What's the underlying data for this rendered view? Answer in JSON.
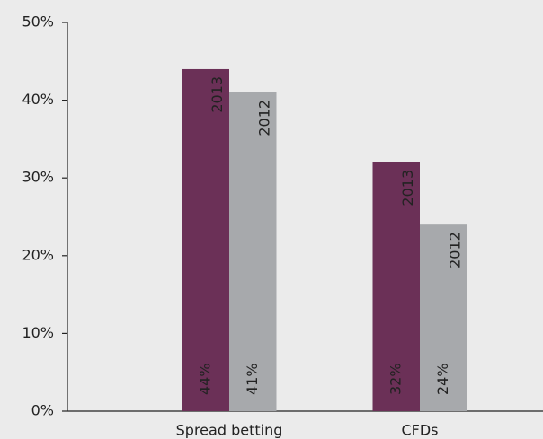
{
  "chart_data": {
    "type": "bar",
    "categories": [
      "Spread betting",
      "CFDs"
    ],
    "series": [
      {
        "name": "2013",
        "color": "#6b3057",
        "values": [
          44,
          32
        ],
        "value_labels": [
          "44%",
          "32%"
        ]
      },
      {
        "name": "2012",
        "color": "#a7a9ac",
        "values": [
          41,
          24
        ],
        "value_labels": [
          "41%",
          "24%"
        ]
      }
    ],
    "ylim": [
      0,
      50
    ],
    "yticks": [
      {
        "value": 0,
        "label": "0%"
      },
      {
        "value": 10,
        "label": "10%"
      },
      {
        "value": 20,
        "label": "20%"
      },
      {
        "value": 30,
        "label": "30%"
      },
      {
        "value": 40,
        "label": "40%"
      },
      {
        "value": 50,
        "label": "50%"
      }
    ]
  }
}
